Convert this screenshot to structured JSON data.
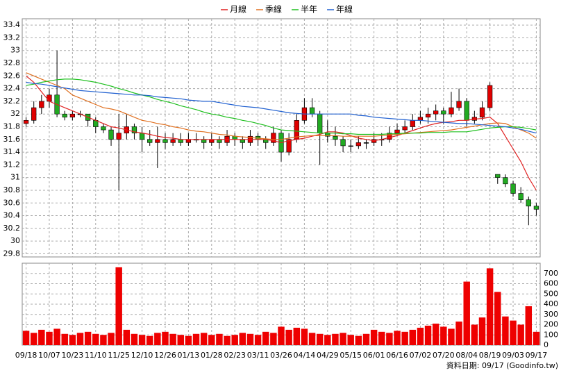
{
  "chart_data": [
    {
      "type": "candlestick",
      "categories": [
        "09/18",
        null,
        null,
        "10/07",
        null,
        null,
        "10/23",
        null,
        null,
        "11/10",
        null,
        null,
        "11/25",
        null,
        null,
        "12/10",
        null,
        null,
        "12/26",
        null,
        null,
        "01/13",
        null,
        null,
        "01/28",
        null,
        null,
        "02/23",
        null,
        null,
        "03/11",
        null,
        null,
        "03/26",
        null,
        null,
        "04/14",
        null,
        null,
        "04/29",
        null,
        null,
        "05/15",
        null,
        null,
        "06/01",
        null,
        null,
        "06/16",
        null,
        null,
        "07/02",
        null,
        null,
        "07/20",
        null,
        null,
        "08/04",
        null,
        null,
        "08/19",
        null,
        null,
        "09/03",
        null,
        null,
        "09/17"
      ],
      "candles": [
        [
          31.85,
          31.95,
          31.8,
          31.9
        ],
        [
          31.9,
          32.2,
          31.85,
          32.1
        ],
        [
          32.1,
          32.3,
          32.0,
          32.2
        ],
        [
          32.2,
          32.4,
          32.1,
          32.3
        ],
        [
          32.3,
          33.0,
          31.95,
          32.0
        ],
        [
          32.0,
          32.05,
          31.9,
          31.95
        ],
        [
          31.95,
          32.05,
          31.9,
          32.0
        ],
        [
          32.0,
          32.05,
          31.95,
          32.0
        ],
        [
          32.0,
          32.0,
          31.8,
          31.9
        ],
        [
          31.9,
          31.95,
          31.7,
          31.8
        ],
        [
          31.8,
          31.85,
          31.7,
          31.75
        ],
        [
          31.75,
          31.8,
          31.5,
          31.6
        ],
        [
          31.6,
          32.0,
          30.8,
          31.7
        ],
        [
          31.7,
          32.0,
          31.6,
          31.8
        ],
        [
          31.8,
          31.85,
          31.6,
          31.7
        ],
        [
          31.7,
          31.8,
          31.4,
          31.6
        ],
        [
          31.6,
          31.75,
          31.5,
          31.55
        ],
        [
          31.55,
          31.8,
          31.15,
          31.6
        ],
        [
          31.6,
          31.7,
          31.45,
          31.55
        ],
        [
          31.55,
          31.7,
          31.5,
          31.6
        ],
        [
          31.6,
          31.7,
          31.5,
          31.55
        ],
        [
          31.55,
          31.7,
          31.5,
          31.6
        ],
        [
          31.6,
          31.7,
          31.55,
          31.6
        ],
        [
          31.6,
          31.65,
          31.45,
          31.55
        ],
        [
          31.55,
          31.7,
          31.5,
          31.6
        ],
        [
          31.6,
          31.65,
          31.45,
          31.55
        ],
        [
          31.55,
          31.75,
          31.5,
          31.65
        ],
        [
          31.65,
          31.7,
          31.5,
          31.6
        ],
        [
          31.6,
          31.65,
          31.45,
          31.55
        ],
        [
          31.55,
          31.75,
          31.5,
          31.65
        ],
        [
          31.65,
          31.7,
          31.5,
          31.6
        ],
        [
          31.6,
          31.65,
          31.45,
          31.55
        ],
        [
          31.55,
          31.8,
          31.5,
          31.7
        ],
        [
          31.7,
          31.75,
          31.25,
          31.4
        ],
        [
          31.4,
          31.7,
          31.35,
          31.6
        ],
        [
          31.6,
          32.0,
          31.55,
          31.9
        ],
        [
          31.9,
          32.25,
          31.85,
          32.1
        ],
        [
          32.1,
          32.25,
          31.95,
          32.0
        ],
        [
          32.0,
          32.05,
          31.2,
          31.7
        ],
        [
          31.7,
          31.9,
          31.55,
          31.65
        ],
        [
          31.65,
          31.8,
          31.5,
          31.6
        ],
        [
          31.6,
          31.65,
          31.4,
          31.5
        ],
        [
          31.5,
          31.6,
          31.4,
          31.5
        ],
        [
          31.5,
          31.65,
          31.45,
          31.55
        ],
        [
          31.55,
          31.6,
          31.45,
          31.55
        ],
        [
          31.55,
          31.7,
          31.5,
          31.6
        ],
        [
          31.6,
          31.7,
          31.5,
          31.6
        ],
        [
          31.6,
          31.8,
          31.55,
          31.7
        ],
        [
          31.7,
          31.85,
          31.65,
          31.75
        ],
        [
          31.75,
          31.9,
          31.7,
          31.8
        ],
        [
          31.8,
          32.0,
          31.75,
          31.9
        ],
        [
          31.9,
          32.05,
          31.85,
          31.95
        ],
        [
          31.95,
          32.1,
          31.85,
          32.0
        ],
        [
          32.0,
          32.15,
          31.9,
          32.05
        ],
        [
          32.05,
          32.1,
          31.85,
          32.0
        ],
        [
          32.0,
          32.35,
          31.95,
          32.1
        ],
        [
          32.1,
          32.4,
          32.05,
          32.2
        ],
        [
          32.2,
          32.25,
          31.8,
          31.9
        ],
        [
          31.9,
          32.05,
          31.85,
          31.95
        ],
        [
          31.95,
          32.2,
          31.9,
          32.1
        ],
        [
          32.1,
          32.5,
          32.05,
          32.45
        ],
        [
          31.05,
          31.05,
          30.9,
          31.0
        ],
        [
          31.0,
          31.05,
          30.85,
          30.9
        ],
        [
          30.9,
          30.95,
          30.7,
          30.75
        ],
        [
          30.75,
          30.85,
          30.6,
          30.65
        ],
        [
          30.65,
          30.7,
          30.25,
          30.55
        ],
        [
          30.55,
          30.6,
          30.4,
          30.5
        ]
      ],
      "up_color": "#e00000",
      "down_color": "#22aa22",
      "series": [
        {
          "name": "月線",
          "color": "#e02020",
          "values": [
            32.6,
            32.5,
            32.35,
            32.2,
            32.15,
            32.1,
            32.05,
            32.0,
            31.95,
            31.9,
            31.85,
            31.8,
            31.78,
            31.75,
            31.72,
            31.7,
            31.68,
            31.65,
            31.63,
            31.62,
            31.6,
            31.6,
            31.6,
            31.6,
            31.6,
            31.6,
            31.6,
            31.6,
            31.6,
            31.6,
            31.6,
            31.6,
            31.58,
            31.55,
            31.58,
            31.6,
            31.62,
            31.65,
            31.68,
            31.72,
            31.72,
            31.7,
            31.66,
            31.62,
            31.6,
            31.58,
            31.6,
            31.63,
            31.66,
            31.7,
            31.74,
            31.78,
            31.82,
            31.85,
            31.87,
            31.88,
            31.9,
            31.9,
            31.92,
            31.93,
            31.95,
            31.85,
            31.65,
            31.45,
            31.25,
            31.0,
            30.8
          ]
        },
        {
          "name": "季線",
          "color": "#e07020",
          "values": [
            32.65,
            32.6,
            32.55,
            32.5,
            32.45,
            32.4,
            32.3,
            32.25,
            32.2,
            32.15,
            32.1,
            32.08,
            32.05,
            32.0,
            31.95,
            31.9,
            31.88,
            31.85,
            31.83,
            31.8,
            31.78,
            31.75,
            31.73,
            31.72,
            31.7,
            31.68,
            31.67,
            31.65,
            31.64,
            31.63,
            31.62,
            31.61,
            31.6,
            31.6,
            31.62,
            31.64,
            31.65,
            31.66,
            31.66,
            31.66,
            31.66,
            31.65,
            31.65,
            31.65,
            31.65,
            31.65,
            31.66,
            31.67,
            31.68,
            31.69,
            31.7,
            31.71,
            31.72,
            31.73,
            31.74,
            31.75,
            31.77,
            31.79,
            31.81,
            31.83,
            31.85,
            31.86,
            31.85,
            31.8,
            31.75,
            31.7,
            31.62
          ]
        },
        {
          "name": "半年",
          "color": "#20c020",
          "values": [
            32.45,
            32.47,
            32.5,
            32.52,
            32.54,
            32.55,
            32.55,
            32.54,
            32.52,
            32.5,
            32.47,
            32.44,
            32.4,
            32.37,
            32.33,
            32.3,
            32.27,
            32.23,
            32.2,
            32.17,
            32.13,
            32.1,
            32.07,
            32.03,
            32.0,
            31.98,
            31.95,
            31.93,
            31.9,
            31.88,
            31.85,
            31.82,
            31.78,
            31.75,
            31.74,
            31.73,
            31.72,
            31.71,
            31.7,
            31.7,
            31.7,
            31.69,
            31.69,
            31.68,
            31.68,
            31.68,
            31.68,
            31.69,
            31.69,
            31.7,
            31.7,
            31.7,
            31.71,
            31.71,
            31.71,
            31.72,
            31.72,
            31.72,
            31.74,
            31.76,
            31.78,
            31.79,
            31.8,
            31.8,
            31.79,
            31.77,
            31.75
          ]
        },
        {
          "name": "年線",
          "color": "#2060d0",
          "values": [
            32.5,
            32.48,
            32.47,
            32.45,
            32.43,
            32.41,
            32.39,
            32.37,
            32.36,
            32.35,
            32.34,
            32.33,
            32.32,
            32.31,
            32.3,
            32.3,
            32.29,
            32.27,
            32.26,
            32.25,
            32.24,
            32.22,
            32.21,
            32.2,
            32.2,
            32.18,
            32.16,
            32.14,
            32.12,
            32.11,
            32.1,
            32.08,
            32.06,
            32.04,
            32.02,
            32.01,
            32.0,
            32.0,
            32.0,
            32.0,
            32.0,
            32.0,
            32.0,
            31.98,
            31.97,
            31.95,
            31.94,
            31.93,
            31.92,
            31.91,
            31.9,
            31.9,
            31.89,
            31.88,
            31.87,
            31.86,
            31.85,
            31.85,
            31.84,
            31.83,
            31.82,
            31.81,
            31.8,
            31.78,
            31.76,
            31.73,
            31.7
          ]
        }
      ],
      "ylim": [
        29.75,
        33.5
      ],
      "yticks": [
        29.8,
        30,
        30.2,
        30.4,
        30.6,
        30.8,
        31,
        31.2,
        31.4,
        31.6,
        31.8,
        32,
        32.2,
        32.4,
        32.6,
        32.8,
        33,
        33.2,
        33.4
      ],
      "grid": true,
      "footer": "資料日期: 09/17  (Goodinfo.tw)"
    },
    {
      "type": "bar",
      "color": "#ee0000",
      "values": [
        140,
        120,
        150,
        130,
        160,
        110,
        100,
        120,
        130,
        110,
        100,
        120,
        760,
        150,
        110,
        100,
        90,
        120,
        130,
        110,
        100,
        90,
        110,
        120,
        100,
        110,
        90,
        100,
        120,
        110,
        100,
        130,
        120,
        180,
        150,
        170,
        160,
        120,
        110,
        100,
        110,
        120,
        100,
        90,
        110,
        150,
        130,
        120,
        140,
        130,
        150,
        170,
        190,
        210,
        180,
        160,
        230,
        620,
        200,
        270,
        750,
        520,
        280,
        240,
        200,
        380,
        130
      ],
      "ylim": [
        0,
        800
      ],
      "yticks": [
        0,
        100,
        200,
        300,
        400,
        500,
        600,
        700
      ],
      "grid": true
    }
  ]
}
